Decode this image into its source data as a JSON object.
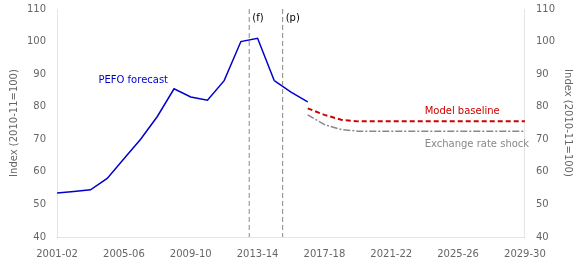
{
  "chart_data": {
    "type": "line",
    "ylabel": "Index (2010-11=100)",
    "y2label": "Index (2010-11=100)",
    "xlim": [
      0,
      28
    ],
    "xticks": [
      {
        "value": 0,
        "label": "2001-02"
      },
      {
        "value": 4,
        "label": "2005-06"
      },
      {
        "value": 8,
        "label": "2009-10"
      },
      {
        "value": 12,
        "label": "2013-14"
      },
      {
        "value": 16,
        "label": "2017-18"
      },
      {
        "value": 20,
        "label": "2021-22"
      },
      {
        "value": 24,
        "label": "2025-26"
      },
      {
        "value": 28,
        "label": "2029-30"
      }
    ],
    "ylim": [
      40,
      110
    ],
    "yticks": [
      40,
      50,
      60,
      70,
      80,
      90,
      100,
      110
    ],
    "y2lim": [
      40,
      110
    ],
    "y2ticks": [
      40,
      50,
      60,
      70,
      80,
      90,
      100,
      110
    ],
    "grid": false,
    "series": [
      {
        "name": "PEFO forecast",
        "color": "#0000cc",
        "line_style": "solid",
        "x": [
          0,
          1,
          2,
          3,
          4,
          5,
          6,
          7,
          8,
          9,
          10,
          11,
          12,
          13
        ],
        "values": [
          53.5,
          54.0,
          54.5,
          58.0,
          64.0,
          70.0,
          77.0,
          85.5,
          83.0,
          82.0,
          88.0,
          100.0,
          101.0,
          88.0
        ]
      },
      {
        "color": "#0000cc",
        "line_style": "solid",
        "x": [
          13,
          14,
          15
        ],
        "values": [
          88.0,
          84.5,
          81.5
        ]
      },
      {
        "name": "Model baseline",
        "color": "#cc0000",
        "line_style": "dashed",
        "x": [
          15,
          16,
          17,
          18,
          19,
          20,
          21,
          22,
          23,
          24,
          25,
          26,
          27,
          28
        ],
        "values": [
          79.5,
          77.5,
          76.0,
          75.5,
          75.5,
          75.5,
          75.5,
          75.5,
          75.5,
          75.5,
          75.5,
          75.5,
          75.5,
          75.5
        ]
      },
      {
        "name": "Exchange rate shock",
        "color": "#888888",
        "line_style": "dashdot",
        "x": [
          15,
          16,
          17,
          18,
          19,
          20,
          21,
          22,
          23,
          24,
          25,
          26,
          27,
          28
        ],
        "values": [
          77.5,
          74.5,
          73.0,
          72.5,
          72.5,
          72.5,
          72.5,
          72.5,
          72.5,
          72.5,
          72.5,
          72.5,
          72.5,
          72.5
        ]
      }
    ],
    "annotations": [
      {
        "x": 11.5,
        "text": "(f)",
        "color": "#888888",
        "line_style": "dashed"
      },
      {
        "x": 13.5,
        "text": "(p)",
        "color": "#888888",
        "line_style": "dashed"
      }
    ]
  }
}
